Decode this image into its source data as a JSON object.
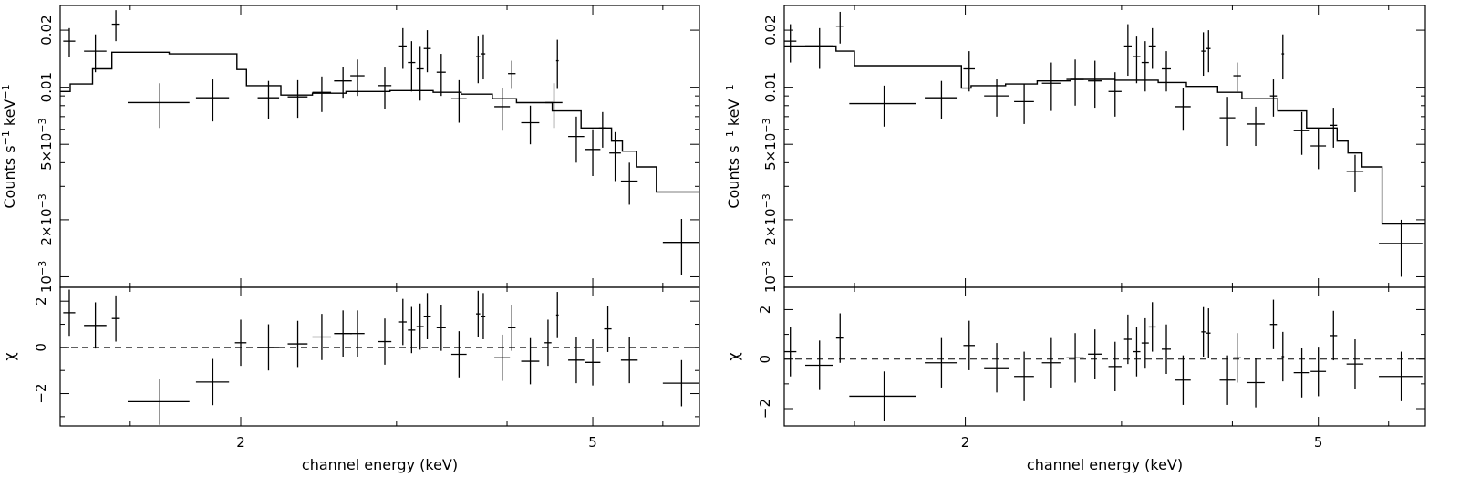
{
  "chart_data": [
    {
      "type": "scatter",
      "title": "",
      "xlabel": "channel energy (keV)",
      "x_scale": "log",
      "xlim": [
        1.25,
        6.6
      ],
      "x_ticks": [
        2,
        5
      ],
      "x_tick_labels": [
        "2",
        "5"
      ],
      "upper": {
        "ylabel": "Counts s^-1 keV^-1",
        "y_scale": "log",
        "ylim": [
          0.00088,
          0.027
        ],
        "y_ticks": [
          0.001,
          0.002,
          0.005,
          0.01,
          0.02
        ],
        "y_tick_labels": [
          "10^-3",
          "2×10^-3",
          "5×10^-3",
          "0.01",
          "0.02"
        ],
        "data": [
          {
            "x": 1.28,
            "xerr": 0.02,
            "y": 0.0175,
            "yerr": 0.003
          },
          {
            "x": 1.37,
            "xerr": 0.04,
            "y": 0.0155,
            "yerr": 0.0035
          },
          {
            "x": 1.445,
            "xerr": 0.015,
            "y": 0.0215,
            "yerr": 0.004
          },
          {
            "x": 1.62,
            "xerr": 0.13,
            "y": 0.0083,
            "yerr": 0.0022
          },
          {
            "x": 1.86,
            "xerr": 0.08,
            "y": 0.0088,
            "yerr": 0.0022
          },
          {
            "x": 2.15,
            "xerr": 0.06,
            "y": 0.0088,
            "yerr": 0.002
          },
          {
            "x": 2.32,
            "xerr": 0.06,
            "y": 0.0089,
            "yerr": 0.002
          },
          {
            "x": 2.47,
            "xerr": 0.06,
            "y": 0.0094,
            "yerr": 0.002
          },
          {
            "x": 2.61,
            "xerr": 0.06,
            "y": 0.0108,
            "yerr": 0.002
          },
          {
            "x": 2.71,
            "xerr": 0.05,
            "y": 0.0115,
            "yerr": 0.0025
          },
          {
            "x": 2.91,
            "xerr": 0.05,
            "y": 0.0102,
            "yerr": 0.0025
          },
          {
            "x": 3.05,
            "xerr": 0.03,
            "y": 0.0165,
            "yerr": 0.004
          },
          {
            "x": 3.12,
            "xerr": 0.03,
            "y": 0.0135,
            "yerr": 0.004
          },
          {
            "x": 3.19,
            "xerr": 0.03,
            "y": 0.0125,
            "yerr": 0.004
          },
          {
            "x": 3.25,
            "xerr": 0.03,
            "y": 0.016,
            "yerr": 0.004
          },
          {
            "x": 3.37,
            "xerr": 0.04,
            "y": 0.012,
            "yerr": 0.003
          },
          {
            "x": 3.53,
            "xerr": 0.07,
            "y": 0.0087,
            "yerr": 0.0022
          },
          {
            "x": 3.71,
            "xerr": 0.02,
            "y": 0.0145,
            "yerr": 0.004
          },
          {
            "x": 3.76,
            "xerr": 0.02,
            "y": 0.015,
            "yerr": 0.004
          },
          {
            "x": 3.95,
            "xerr": 0.08,
            "y": 0.0079,
            "yerr": 0.002
          },
          {
            "x": 4.05,
            "xerr": 0.04,
            "y": 0.0118,
            "yerr": 0.002
          },
          {
            "x": 4.25,
            "xerr": 0.1,
            "y": 0.0065,
            "yerr": 0.0015
          },
          {
            "x": 4.52,
            "xerr": 0.1,
            "y": 0.0083,
            "yerr": 0.0022
          },
          {
            "x": 4.56,
            "xerr": 0.015,
            "y": 0.0138,
            "yerr": 0.004
          },
          {
            "x": 4.79,
            "xerr": 0.1,
            "y": 0.0055,
            "yerr": 0.0015
          },
          {
            "x": 5.0,
            "xerr": 0.1,
            "y": 0.0047,
            "yerr": 0.0013
          },
          {
            "x": 5.13,
            "xerr": 0.05,
            "y": 0.0061,
            "yerr": 0.0013
          },
          {
            "x": 5.3,
            "xerr": 0.08,
            "y": 0.0045,
            "yerr": 0.0013
          },
          {
            "x": 5.5,
            "xerr": 0.12,
            "y": 0.0032,
            "yerr": 0.0008
          },
          {
            "x": 6.3,
            "xerr": 0.3,
            "y": 0.00152,
            "yerr": 0.0005
          }
        ],
        "model_edges": [
          1.25,
          1.283,
          1.36,
          1.43,
          1.66,
          1.98,
          2.03,
          2.22,
          2.41,
          2.63,
          2.95,
          3.3,
          3.55,
          3.85,
          4.1,
          4.5,
          4.85,
          5.25,
          5.4,
          5.6,
          5.9,
          6.6
        ],
        "model_values": [
          0.0095,
          0.0104,
          0.0125,
          0.0153,
          0.015,
          0.0124,
          0.0102,
          0.0091,
          0.0093,
          0.0095,
          0.0096,
          0.0094,
          0.0092,
          0.0087,
          0.0083,
          0.0075,
          0.0061,
          0.0052,
          0.0046,
          0.0038,
          0.0028
        ]
      },
      "lower": {
        "ylabel": "χ",
        "ylim": [
          -3.4,
          2.6
        ],
        "y_ticks": [
          -2,
          0,
          2
        ],
        "y_tick_labels": [
          "−2",
          "0",
          "2"
        ],
        "reference_line": 0,
        "data": [
          {
            "x": 1.28,
            "xerr": 0.02,
            "y": 1.5,
            "yerr": 1.0
          },
          {
            "x": 1.37,
            "xerr": 0.04,
            "y": 0.95,
            "yerr": 1.0
          },
          {
            "x": 1.445,
            "xerr": 0.015,
            "y": 1.25,
            "yerr": 1.0
          },
          {
            "x": 1.62,
            "xerr": 0.13,
            "y": -2.35,
            "yerr": 1.0
          },
          {
            "x": 1.86,
            "xerr": 0.08,
            "y": -1.5,
            "yerr": 1.0
          },
          {
            "x": 2.0,
            "xerr": 0.03,
            "y": 0.2,
            "yerr": 1.0
          },
          {
            "x": 2.15,
            "xerr": 0.06,
            "y": 0.0,
            "yerr": 1.0
          },
          {
            "x": 2.32,
            "xerr": 0.06,
            "y": 0.15,
            "yerr": 1.0
          },
          {
            "x": 2.47,
            "xerr": 0.06,
            "y": 0.45,
            "yerr": 1.0
          },
          {
            "x": 2.61,
            "xerr": 0.06,
            "y": 0.6,
            "yerr": 1.0
          },
          {
            "x": 2.71,
            "xerr": 0.05,
            "y": 0.6,
            "yerr": 1.0
          },
          {
            "x": 2.91,
            "xerr": 0.05,
            "y": 0.25,
            "yerr": 1.0
          },
          {
            "x": 3.05,
            "xerr": 0.03,
            "y": 1.1,
            "yerr": 1.0
          },
          {
            "x": 3.12,
            "xerr": 0.03,
            "y": 0.75,
            "yerr": 1.0
          },
          {
            "x": 3.19,
            "xerr": 0.03,
            "y": 0.9,
            "yerr": 1.0
          },
          {
            "x": 3.25,
            "xerr": 0.03,
            "y": 1.35,
            "yerr": 1.0
          },
          {
            "x": 3.37,
            "xerr": 0.04,
            "y": 0.85,
            "yerr": 1.0
          },
          {
            "x": 3.53,
            "xerr": 0.07,
            "y": -0.3,
            "yerr": 1.0
          },
          {
            "x": 3.71,
            "xerr": 0.02,
            "y": 1.45,
            "yerr": 1.0
          },
          {
            "x": 3.76,
            "xerr": 0.02,
            "y": 1.35,
            "yerr": 1.0
          },
          {
            "x": 3.95,
            "xerr": 0.08,
            "y": -0.45,
            "yerr": 1.0
          },
          {
            "x": 4.05,
            "xerr": 0.04,
            "y": 0.85,
            "yerr": 1.0
          },
          {
            "x": 4.25,
            "xerr": 0.1,
            "y": -0.6,
            "yerr": 1.0
          },
          {
            "x": 4.45,
            "xerr": 0.04,
            "y": 0.2,
            "yerr": 1.0
          },
          {
            "x": 4.56,
            "xerr": 0.015,
            "y": 1.4,
            "yerr": 1.0
          },
          {
            "x": 4.79,
            "xerr": 0.1,
            "y": -0.55,
            "yerr": 1.0
          },
          {
            "x": 5.0,
            "xerr": 0.1,
            "y": -0.65,
            "yerr": 1.0
          },
          {
            "x": 5.2,
            "xerr": 0.05,
            "y": 0.8,
            "yerr": 1.0
          },
          {
            "x": 5.5,
            "xerr": 0.12,
            "y": -0.55,
            "yerr": 1.0
          },
          {
            "x": 6.3,
            "xerr": 0.3,
            "y": -1.55,
            "yerr": 1.0
          }
        ]
      }
    },
    {
      "type": "scatter",
      "title": "",
      "xlabel": "channel energy (keV)",
      "x_scale": "log",
      "xlim": [
        1.25,
        6.6
      ],
      "x_ticks": [
        2,
        5
      ],
      "x_tick_labels": [
        "2",
        "5"
      ],
      "upper": {
        "ylabel": "Counts s^-1 keV^-1",
        "y_scale": "log",
        "ylim": [
          0.00088,
          0.027
        ],
        "y_ticks": [
          0.001,
          0.002,
          0.005,
          0.01,
          0.02
        ],
        "y_tick_labels": [
          "10^-3",
          "2×10^-3",
          "5×10^-3",
          "0.01",
          "0.02"
        ],
        "data": [
          {
            "x": 1.27,
            "xerr": 0.02,
            "y": 0.0175,
            "yerr": 0.004
          },
          {
            "x": 1.37,
            "xerr": 0.05,
            "y": 0.0165,
            "yerr": 0.004
          },
          {
            "x": 1.445,
            "xerr": 0.015,
            "y": 0.021,
            "yerr": 0.004
          },
          {
            "x": 1.62,
            "xerr": 0.14,
            "y": 0.0082,
            "yerr": 0.002
          },
          {
            "x": 1.88,
            "xerr": 0.08,
            "y": 0.0088,
            "yerr": 0.002
          },
          {
            "x": 2.02,
            "xerr": 0.03,
            "y": 0.0125,
            "yerr": 0.003
          },
          {
            "x": 2.17,
            "xerr": 0.07,
            "y": 0.009,
            "yerr": 0.002
          },
          {
            "x": 2.33,
            "xerr": 0.06,
            "y": 0.0084,
            "yerr": 0.002
          },
          {
            "x": 2.5,
            "xerr": 0.06,
            "y": 0.0105,
            "yerr": 0.003
          },
          {
            "x": 2.66,
            "xerr": 0.06,
            "y": 0.011,
            "yerr": 0.003
          },
          {
            "x": 2.8,
            "xerr": 0.05,
            "y": 0.0108,
            "yerr": 0.003
          },
          {
            "x": 2.95,
            "xerr": 0.05,
            "y": 0.0095,
            "yerr": 0.0025
          },
          {
            "x": 3.05,
            "xerr": 0.03,
            "y": 0.0165,
            "yerr": 0.005
          },
          {
            "x": 3.12,
            "xerr": 0.03,
            "y": 0.0145,
            "yerr": 0.004
          },
          {
            "x": 3.19,
            "xerr": 0.03,
            "y": 0.0135,
            "yerr": 0.004
          },
          {
            "x": 3.25,
            "xerr": 0.03,
            "y": 0.0165,
            "yerr": 0.004
          },
          {
            "x": 3.37,
            "xerr": 0.04,
            "y": 0.0125,
            "yerr": 0.003
          },
          {
            "x": 3.52,
            "xerr": 0.07,
            "y": 0.0079,
            "yerr": 0.002
          },
          {
            "x": 3.71,
            "xerr": 0.02,
            "y": 0.0155,
            "yerr": 0.004
          },
          {
            "x": 3.76,
            "xerr": 0.02,
            "y": 0.016,
            "yerr": 0.004
          },
          {
            "x": 3.95,
            "xerr": 0.08,
            "y": 0.0069,
            "yerr": 0.002
          },
          {
            "x": 4.05,
            "xerr": 0.04,
            "y": 0.0115,
            "yerr": 0.002
          },
          {
            "x": 4.25,
            "xerr": 0.1,
            "y": 0.0064,
            "yerr": 0.0015
          },
          {
            "x": 4.45,
            "xerr": 0.04,
            "y": 0.009,
            "yerr": 0.002
          },
          {
            "x": 4.56,
            "xerr": 0.015,
            "y": 0.015,
            "yerr": 0.004
          },
          {
            "x": 4.79,
            "xerr": 0.1,
            "y": 0.0059,
            "yerr": 0.0015
          },
          {
            "x": 5.0,
            "xerr": 0.1,
            "y": 0.0049,
            "yerr": 0.0012
          },
          {
            "x": 5.2,
            "xerr": 0.05,
            "y": 0.0063,
            "yerr": 0.0015
          },
          {
            "x": 5.5,
            "xerr": 0.12,
            "y": 0.0036,
            "yerr": 0.0008
          },
          {
            "x": 6.2,
            "xerr": 0.35,
            "y": 0.0015,
            "yerr": 0.0005
          }
        ],
        "model_edges": [
          1.25,
          1.3,
          1.43,
          1.5,
          1.98,
          2.03,
          2.22,
          2.41,
          2.63,
          2.95,
          3.3,
          3.55,
          3.85,
          4.1,
          4.5,
          4.85,
          5.25,
          5.4,
          5.6,
          5.9,
          6.6
        ],
        "model_values": [
          0.0165,
          0.0165,
          0.0155,
          0.013,
          0.0099,
          0.0102,
          0.0104,
          0.0108,
          0.011,
          0.0109,
          0.0106,
          0.0101,
          0.0094,
          0.0087,
          0.0075,
          0.0061,
          0.0052,
          0.0045,
          0.0038,
          0.0019
        ]
      },
      "lower": {
        "ylabel": "χ",
        "ylim": [
          -2.7,
          2.9
        ],
        "y_ticks": [
          -2,
          0,
          2
        ],
        "y_tick_labels": [
          "−2",
          "0",
          "2"
        ],
        "reference_line": 0,
        "data": [
          {
            "x": 1.27,
            "xerr": 0.02,
            "y": 0.3,
            "yerr": 1.0
          },
          {
            "x": 1.37,
            "xerr": 0.05,
            "y": -0.25,
            "yerr": 1.0
          },
          {
            "x": 1.445,
            "xerr": 0.015,
            "y": 0.85,
            "yerr": 1.0
          },
          {
            "x": 1.62,
            "xerr": 0.14,
            "y": -1.5,
            "yerr": 1.0
          },
          {
            "x": 1.88,
            "xerr": 0.08,
            "y": -0.15,
            "yerr": 1.0
          },
          {
            "x": 2.02,
            "xerr": 0.03,
            "y": 0.55,
            "yerr": 1.0
          },
          {
            "x": 2.17,
            "xerr": 0.07,
            "y": -0.35,
            "yerr": 1.0
          },
          {
            "x": 2.33,
            "xerr": 0.06,
            "y": -0.7,
            "yerr": 1.0
          },
          {
            "x": 2.5,
            "xerr": 0.06,
            "y": -0.15,
            "yerr": 1.0
          },
          {
            "x": 2.66,
            "xerr": 0.06,
            "y": 0.05,
            "yerr": 1.0
          },
          {
            "x": 2.8,
            "xerr": 0.05,
            "y": 0.2,
            "yerr": 1.0
          },
          {
            "x": 2.95,
            "xerr": 0.05,
            "y": -0.3,
            "yerr": 1.0
          },
          {
            "x": 3.05,
            "xerr": 0.03,
            "y": 0.8,
            "yerr": 1.0
          },
          {
            "x": 3.12,
            "xerr": 0.03,
            "y": 0.3,
            "yerr": 1.0
          },
          {
            "x": 3.19,
            "xerr": 0.03,
            "y": 0.65,
            "yerr": 1.0
          },
          {
            "x": 3.25,
            "xerr": 0.03,
            "y": 1.3,
            "yerr": 1.0
          },
          {
            "x": 3.37,
            "xerr": 0.04,
            "y": 0.4,
            "yerr": 1.0
          },
          {
            "x": 3.52,
            "xerr": 0.07,
            "y": -0.85,
            "yerr": 1.0
          },
          {
            "x": 3.71,
            "xerr": 0.02,
            "y": 1.1,
            "yerr": 1.0
          },
          {
            "x": 3.76,
            "xerr": 0.02,
            "y": 1.05,
            "yerr": 1.0
          },
          {
            "x": 3.95,
            "xerr": 0.08,
            "y": -0.85,
            "yerr": 1.0
          },
          {
            "x": 4.05,
            "xerr": 0.04,
            "y": 0.05,
            "yerr": 1.0
          },
          {
            "x": 4.25,
            "xerr": 0.1,
            "y": -0.95,
            "yerr": 1.0
          },
          {
            "x": 4.45,
            "xerr": 0.04,
            "y": 1.4,
            "yerr": 1.0
          },
          {
            "x": 4.56,
            "xerr": 0.015,
            "y": 0.1,
            "yerr": 1.0
          },
          {
            "x": 4.79,
            "xerr": 0.1,
            "y": -0.55,
            "yerr": 1.0
          },
          {
            "x": 5.0,
            "xerr": 0.1,
            "y": -0.5,
            "yerr": 1.0
          },
          {
            "x": 5.2,
            "xerr": 0.05,
            "y": 0.95,
            "yerr": 1.0
          },
          {
            "x": 5.5,
            "xerr": 0.12,
            "y": -0.2,
            "yerr": 1.0
          },
          {
            "x": 6.2,
            "xerr": 0.35,
            "y": -0.7,
            "yerr": 1.0
          }
        ]
      }
    }
  ]
}
